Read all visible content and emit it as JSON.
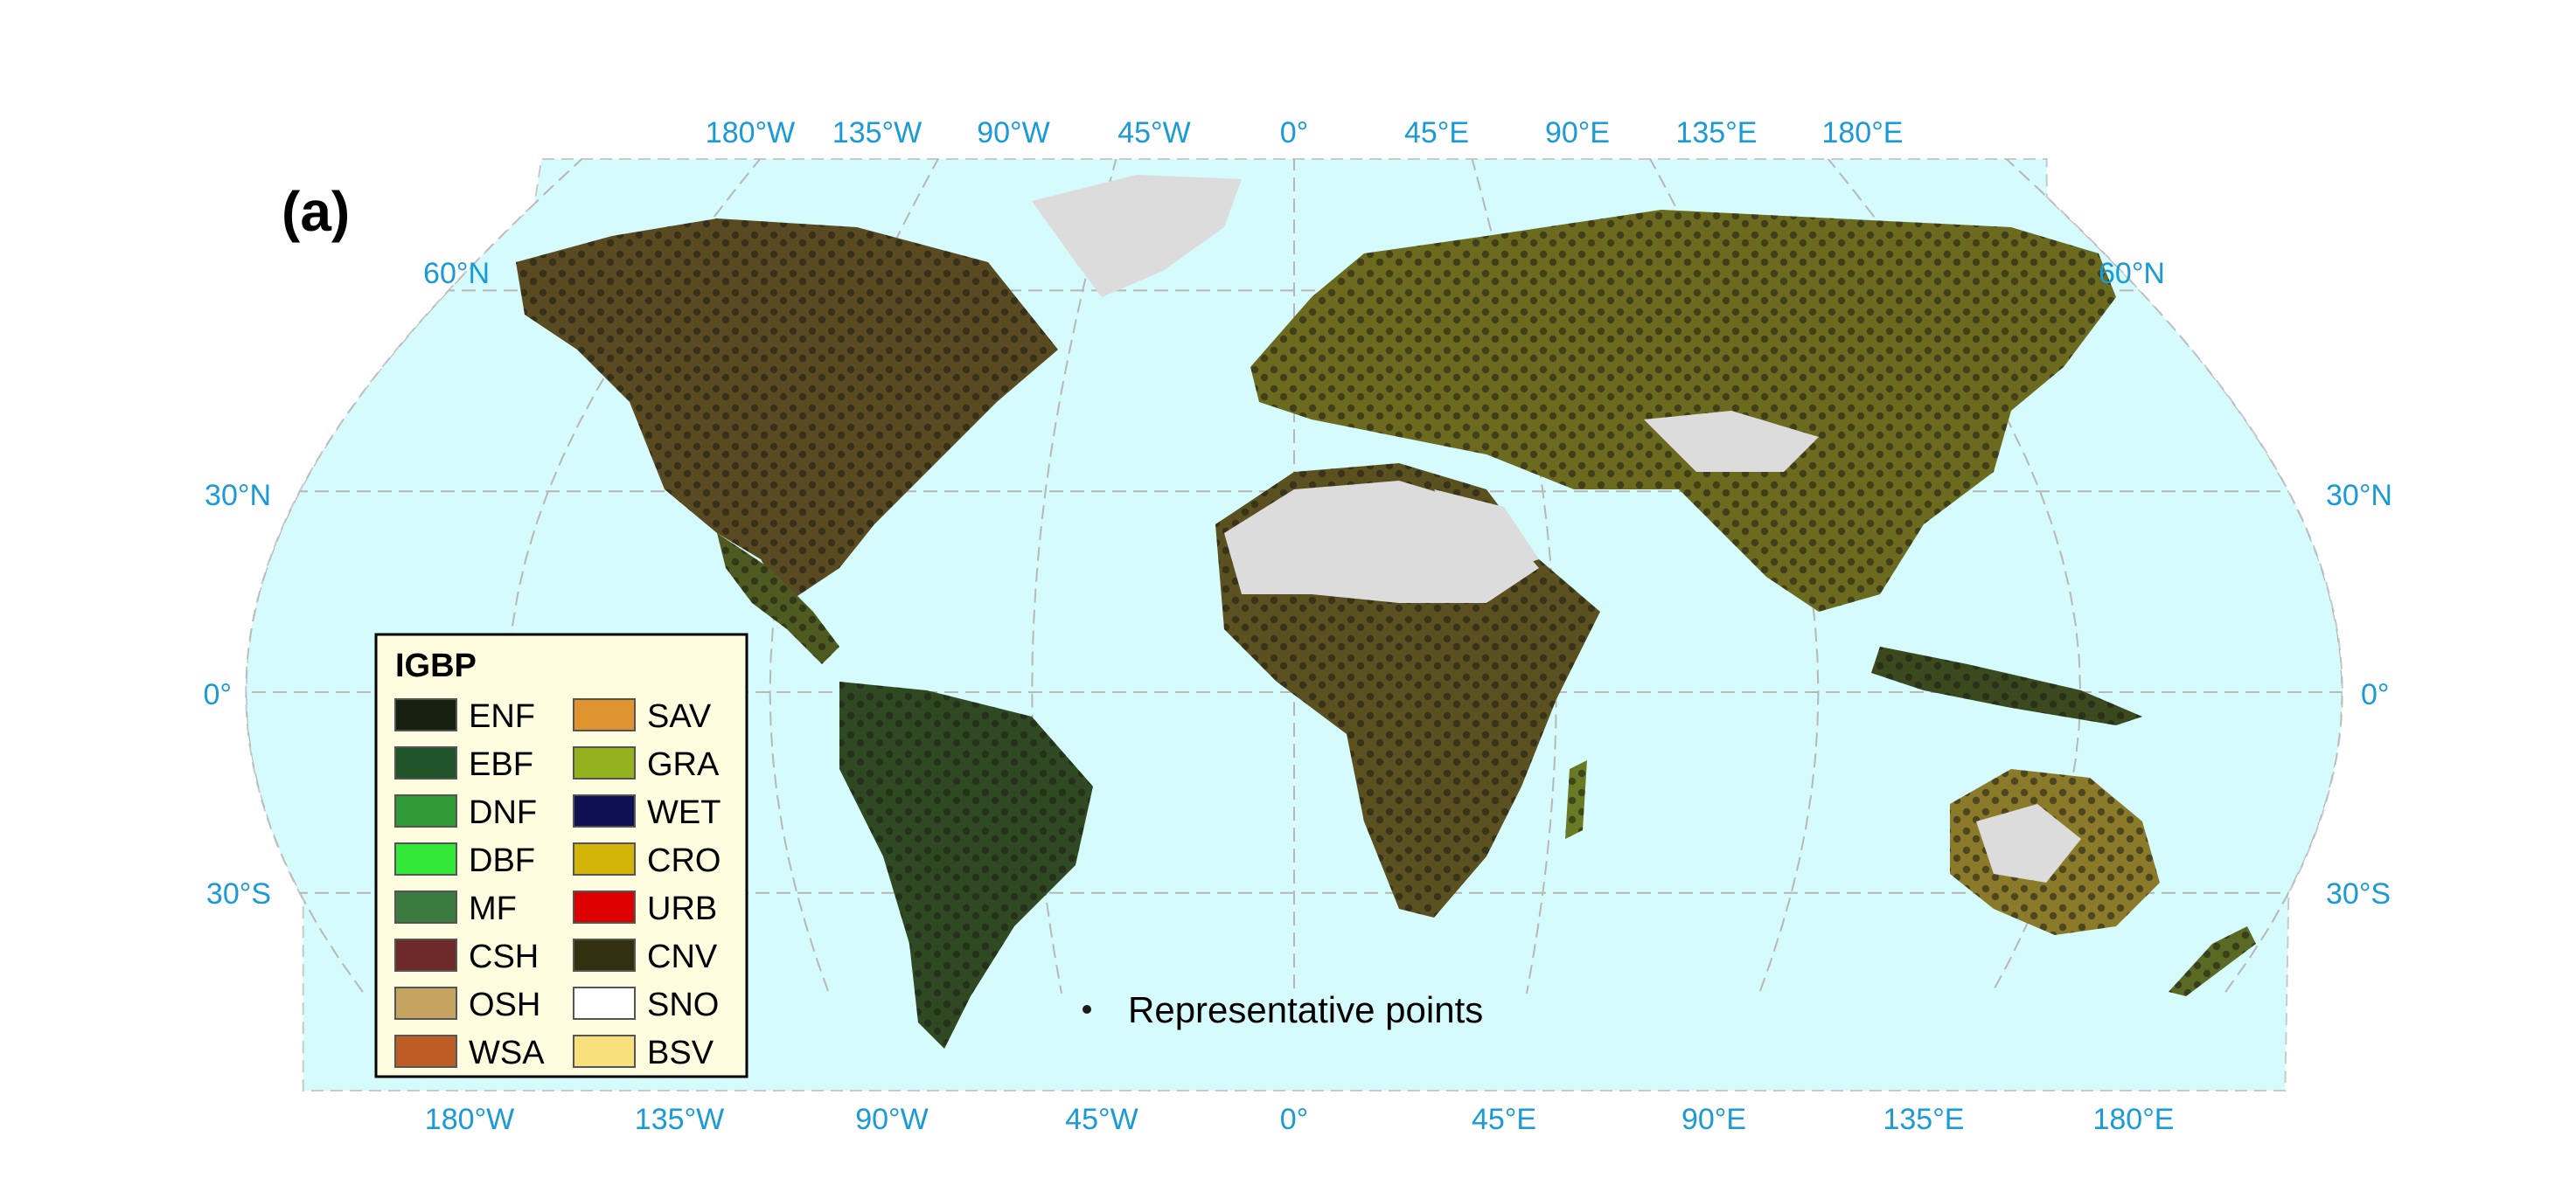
{
  "panel_label": "(a)",
  "colors": {
    "ocean": "#d6fbfc",
    "land_bare": "#dcdcdc",
    "graticule": "#b7b7b7",
    "tick_labels": "#1a9ad6",
    "points": "#1c1c14"
  },
  "axes": {
    "top_lon": [
      "180°W",
      "135°W",
      "90°W",
      "45°W",
      "0°",
      "45°E",
      "90°E",
      "135°E",
      "180°E"
    ],
    "bottom_lon": [
      "180°W",
      "135°W",
      "90°W",
      "45°W",
      "0°",
      "45°E",
      "90°E",
      "135°E",
      "180°E"
    ],
    "left_lat": [
      "60°N",
      "30°N",
      "0°",
      "30°S"
    ],
    "right_lat": [
      "60°N",
      "30°N",
      "0°",
      "30°S"
    ]
  },
  "legend": {
    "title": "IGBP",
    "col1": [
      {
        "label": "ENF",
        "color": "#15200e"
      },
      {
        "label": "EBF",
        "color": "#1f5428"
      },
      {
        "label": "DNF",
        "color": "#2f9a36"
      },
      {
        "label": "DBF",
        "color": "#34e83a"
      },
      {
        "label": "MF",
        "color": "#3b7a3e"
      },
      {
        "label": "CSH",
        "color": "#6e2a2a"
      },
      {
        "label": "OSH",
        "color": "#c5a461"
      },
      {
        "label": "WSA",
        "color": "#bb5d24"
      }
    ],
    "col2": [
      {
        "label": "SAV",
        "color": "#df9430"
      },
      {
        "label": "GRA",
        "color": "#94b21e"
      },
      {
        "label": "WET",
        "color": "#0f1054"
      },
      {
        "label": "CRO",
        "color": "#d5b40a"
      },
      {
        "label": "URB",
        "color": "#dc0000"
      },
      {
        "label": "CNV",
        "color": "#33300f"
      },
      {
        "label": "SNO",
        "color": "#ffffff"
      },
      {
        "label": "BSV",
        "color": "#f8e07c"
      }
    ]
  },
  "point_legend": {
    "label": "Representative points"
  }
}
